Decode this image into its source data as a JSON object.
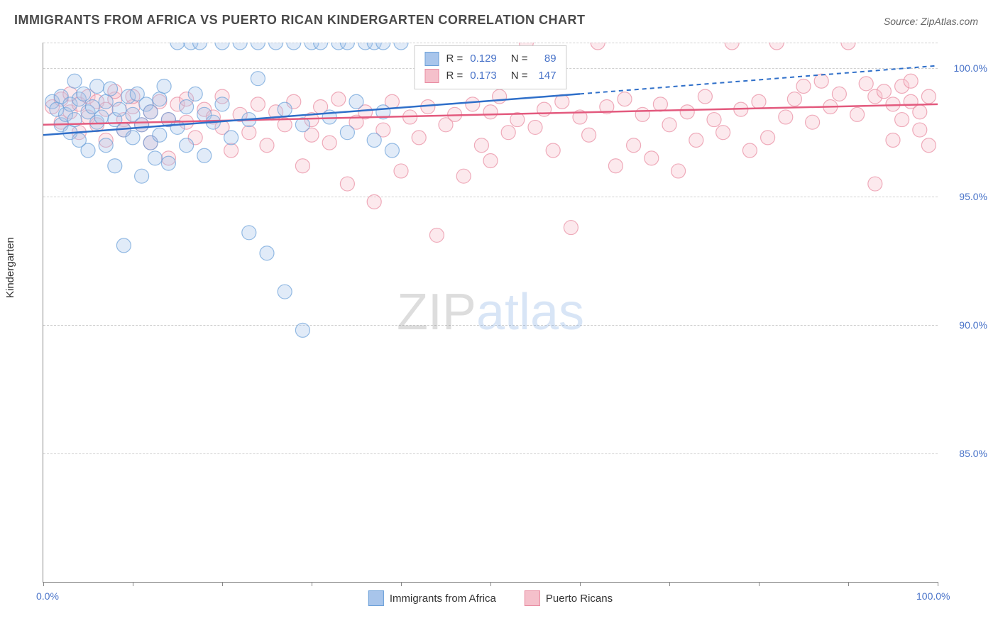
{
  "title": "IMMIGRANTS FROM AFRICA VS PUERTO RICAN KINDERGARTEN CORRELATION CHART",
  "source": "Source: ZipAtlas.com",
  "ylabel": "Kindergarten",
  "watermark_a": "ZIP",
  "watermark_b": "atlas",
  "chart": {
    "type": "scatter",
    "xlim": [
      0,
      100
    ],
    "ylim": [
      80,
      101
    ],
    "x_ticks": [
      0,
      10,
      20,
      30,
      40,
      50,
      60,
      70,
      80,
      90,
      100
    ],
    "x_tick_labels": {
      "0": "0.0%",
      "100": "100.0%"
    },
    "y_ticks": [
      85,
      90,
      95,
      100
    ],
    "y_tick_labels": {
      "85": "85.0%",
      "90": "90.0%",
      "95": "95.0%",
      "100": "100.0%"
    },
    "grid_color": "#d0d0d0",
    "axis_color": "#888888",
    "background_color": "#ffffff",
    "tick_label_color": "#4a74c9",
    "marker_radius": 10,
    "marker_opacity": 0.35,
    "series": [
      {
        "name": "Immigrants from Africa",
        "color_fill": "#a8c5eb",
        "color_stroke": "#6a9fd8",
        "line_color": "#2f6fc9",
        "R": "0.129",
        "N": "89",
        "trend": {
          "x1": 0,
          "y1": 97.4,
          "x2": 60,
          "y2": 99.0,
          "extend_x": 100,
          "extend_y": 100.1,
          "dashed_after": 60
        },
        "points": [
          [
            1,
            98.7
          ],
          [
            1.5,
            98.4
          ],
          [
            2,
            98.9
          ],
          [
            2,
            97.8
          ],
          [
            2.5,
            98.2
          ],
          [
            3,
            98.6
          ],
          [
            3,
            97.5
          ],
          [
            3.5,
            99.5
          ],
          [
            3.5,
            98.0
          ],
          [
            4,
            97.2
          ],
          [
            4,
            98.8
          ],
          [
            4.5,
            99.0
          ],
          [
            5,
            98.3
          ],
          [
            5,
            96.8
          ],
          [
            5.5,
            98.5
          ],
          [
            6,
            97.9
          ],
          [
            6,
            99.3
          ],
          [
            6.5,
            98.1
          ],
          [
            7,
            97.0
          ],
          [
            7,
            98.7
          ],
          [
            7.5,
            99.2
          ],
          [
            8,
            98.0
          ],
          [
            8,
            96.2
          ],
          [
            8.5,
            98.4
          ],
          [
            9,
            97.6
          ],
          [
            9,
            93.1
          ],
          [
            9.5,
            98.9
          ],
          [
            10,
            98.2
          ],
          [
            10,
            97.3
          ],
          [
            10.5,
            99.0
          ],
          [
            11,
            97.8
          ],
          [
            11,
            95.8
          ],
          [
            11.5,
            98.6
          ],
          [
            12,
            97.1
          ],
          [
            12,
            98.3
          ],
          [
            12.5,
            96.5
          ],
          [
            13,
            98.8
          ],
          [
            13,
            97.4
          ],
          [
            13.5,
            99.3
          ],
          [
            14,
            98.0
          ],
          [
            14,
            96.3
          ],
          [
            15,
            97.7
          ],
          [
            15,
            101.0
          ],
          [
            16,
            98.5
          ],
          [
            16,
            97.0
          ],
          [
            16.5,
            101.0
          ],
          [
            17,
            99.0
          ],
          [
            17.5,
            101.0
          ],
          [
            18,
            98.2
          ],
          [
            18,
            96.6
          ],
          [
            19,
            97.9
          ],
          [
            20,
            98.6
          ],
          [
            20,
            101.0
          ],
          [
            21,
            97.3
          ],
          [
            22,
            101.0
          ],
          [
            23,
            98.0
          ],
          [
            23,
            93.6
          ],
          [
            24,
            99.6
          ],
          [
            24,
            101.0
          ],
          [
            25,
            92.8
          ],
          [
            26,
            101.0
          ],
          [
            27,
            98.4
          ],
          [
            27,
            91.3
          ],
          [
            28,
            101.0
          ],
          [
            29,
            97.8
          ],
          [
            29,
            89.8
          ],
          [
            30,
            101.0
          ],
          [
            31,
            101.0
          ],
          [
            32,
            98.1
          ],
          [
            33,
            101.0
          ],
          [
            34,
            97.5
          ],
          [
            34,
            101.0
          ],
          [
            35,
            98.7
          ],
          [
            36,
            101.0
          ],
          [
            37,
            97.2
          ],
          [
            37,
            101.0
          ],
          [
            38,
            98.3
          ],
          [
            38,
            101.0
          ],
          [
            39,
            96.8
          ],
          [
            40,
            101.0
          ]
        ]
      },
      {
        "name": "Puerto Ricans",
        "color_fill": "#f5c0cb",
        "color_stroke": "#e88aa0",
        "line_color": "#e35a7e",
        "R": "0.173",
        "N": "147",
        "trend": {
          "x1": 0,
          "y1": 97.8,
          "x2": 100,
          "y2": 98.6
        },
        "points": [
          [
            1,
            98.5
          ],
          [
            2,
            98.8
          ],
          [
            2,
            97.9
          ],
          [
            3,
            98.3
          ],
          [
            3,
            99.0
          ],
          [
            4,
            98.6
          ],
          [
            4,
            97.5
          ],
          [
            5,
            98.9
          ],
          [
            5,
            98.1
          ],
          [
            6,
            97.8
          ],
          [
            6,
            98.7
          ],
          [
            7,
            98.4
          ],
          [
            7,
            97.2
          ],
          [
            8,
            98.8
          ],
          [
            8,
            99.1
          ],
          [
            9,
            98.0
          ],
          [
            9,
            97.6
          ],
          [
            10,
            98.5
          ],
          [
            10,
            98.9
          ],
          [
            11,
            97.8
          ],
          [
            12,
            98.3
          ],
          [
            12,
            97.1
          ],
          [
            13,
            98.7
          ],
          [
            14,
            98.0
          ],
          [
            14,
            96.5
          ],
          [
            15,
            98.6
          ],
          [
            16,
            97.9
          ],
          [
            16,
            98.8
          ],
          [
            17,
            97.3
          ],
          [
            18,
            98.4
          ],
          [
            19,
            98.1
          ],
          [
            20,
            97.7
          ],
          [
            20,
            98.9
          ],
          [
            21,
            96.8
          ],
          [
            22,
            98.2
          ],
          [
            23,
            97.5
          ],
          [
            24,
            98.6
          ],
          [
            25,
            97.0
          ],
          [
            26,
            98.3
          ],
          [
            27,
            97.8
          ],
          [
            28,
            98.7
          ],
          [
            29,
            96.2
          ],
          [
            30,
            98.0
          ],
          [
            30,
            97.4
          ],
          [
            31,
            98.5
          ],
          [
            32,
            97.1
          ],
          [
            33,
            98.8
          ],
          [
            34,
            95.5
          ],
          [
            35,
            97.9
          ],
          [
            36,
            98.3
          ],
          [
            37,
            94.8
          ],
          [
            38,
            97.6
          ],
          [
            39,
            98.7
          ],
          [
            40,
            96.0
          ],
          [
            41,
            98.1
          ],
          [
            42,
            97.3
          ],
          [
            43,
            98.5
          ],
          [
            44,
            93.5
          ],
          [
            45,
            97.8
          ],
          [
            46,
            98.2
          ],
          [
            47,
            95.8
          ],
          [
            48,
            98.6
          ],
          [
            49,
            97.0
          ],
          [
            50,
            98.3
          ],
          [
            50,
            96.4
          ],
          [
            51,
            98.9
          ],
          [
            52,
            97.5
          ],
          [
            53,
            98.0
          ],
          [
            54,
            101.0
          ],
          [
            55,
            97.7
          ],
          [
            56,
            98.4
          ],
          [
            57,
            96.8
          ],
          [
            58,
            98.7
          ],
          [
            59,
            93.8
          ],
          [
            60,
            98.1
          ],
          [
            61,
            97.4
          ],
          [
            62,
            101.0
          ],
          [
            63,
            98.5
          ],
          [
            64,
            96.2
          ],
          [
            65,
            98.8
          ],
          [
            66,
            97.0
          ],
          [
            67,
            98.2
          ],
          [
            68,
            96.5
          ],
          [
            69,
            98.6
          ],
          [
            70,
            97.8
          ],
          [
            71,
            96.0
          ],
          [
            72,
            98.3
          ],
          [
            73,
            97.2
          ],
          [
            74,
            98.9
          ],
          [
            75,
            98.0
          ],
          [
            76,
            97.5
          ],
          [
            77,
            101.0
          ],
          [
            78,
            98.4
          ],
          [
            79,
            96.8
          ],
          [
            80,
            98.7
          ],
          [
            81,
            97.3
          ],
          [
            82,
            101.0
          ],
          [
            83,
            98.1
          ],
          [
            84,
            98.8
          ],
          [
            85,
            99.3
          ],
          [
            86,
            97.9
          ],
          [
            87,
            99.5
          ],
          [
            88,
            98.5
          ],
          [
            89,
            99.0
          ],
          [
            90,
            101.0
          ],
          [
            91,
            98.2
          ],
          [
            92,
            99.4
          ],
          [
            93,
            98.9
          ],
          [
            93,
            95.5
          ],
          [
            94,
            99.1
          ],
          [
            95,
            98.6
          ],
          [
            95,
            97.2
          ],
          [
            96,
            99.3
          ],
          [
            96,
            98.0
          ],
          [
            97,
            98.7
          ],
          [
            97,
            99.5
          ],
          [
            98,
            98.3
          ],
          [
            98,
            97.6
          ],
          [
            99,
            98.9
          ],
          [
            99,
            97.0
          ]
        ]
      }
    ]
  },
  "legend_bottom": [
    {
      "label": "Immigrants from Africa",
      "fill": "#a8c5eb",
      "stroke": "#6a9fd8"
    },
    {
      "label": "Puerto Ricans",
      "fill": "#f5c0cb",
      "stroke": "#e88aa0"
    }
  ]
}
